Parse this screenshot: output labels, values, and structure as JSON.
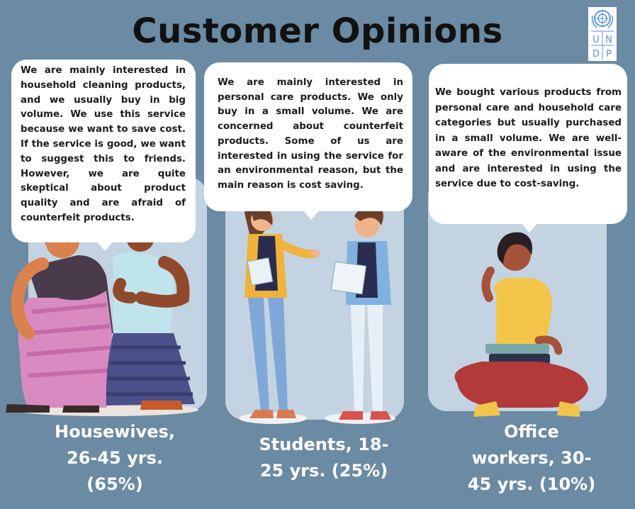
{
  "header": {
    "title": "Customer Opinions"
  },
  "logo": {
    "letters": [
      "U",
      "N",
      "D",
      "P"
    ]
  },
  "segments": [
    {
      "quote": "We are mainly interested in household cleaning products, and we usually buy in big volume. We use this service because we want to save cost. If the service is good, we want to suggest this to friends. However, we are quite skeptical about product quality and are afraid of counterfeit products.",
      "caption_lines": [
        "Housewives,",
        "26-45 yrs.",
        "(65%)"
      ]
    },
    {
      "quote": "We are mainly interested in personal care products. We only buy in a small volume. We are concerned about counterfeit products. Some of us are interested in using the service for an environmental reason, but the main reason is cost saving.",
      "caption_lines": [
        "Students, 18-",
        "25 yrs. (25%)"
      ]
    },
    {
      "quote": "We bought various products from personal care and household care categories but usually purchased in a small volume. We are well-aware of the environmental issue and are interested in using the service due to cost-saving.",
      "caption_lines": [
        "Office",
        "workers, 30-",
        "45 yrs. (10%)"
      ]
    }
  ],
  "colors": {
    "background": "#6b8aa3",
    "panel": "#c3d3e2",
    "bubble": "#ffffff"
  }
}
